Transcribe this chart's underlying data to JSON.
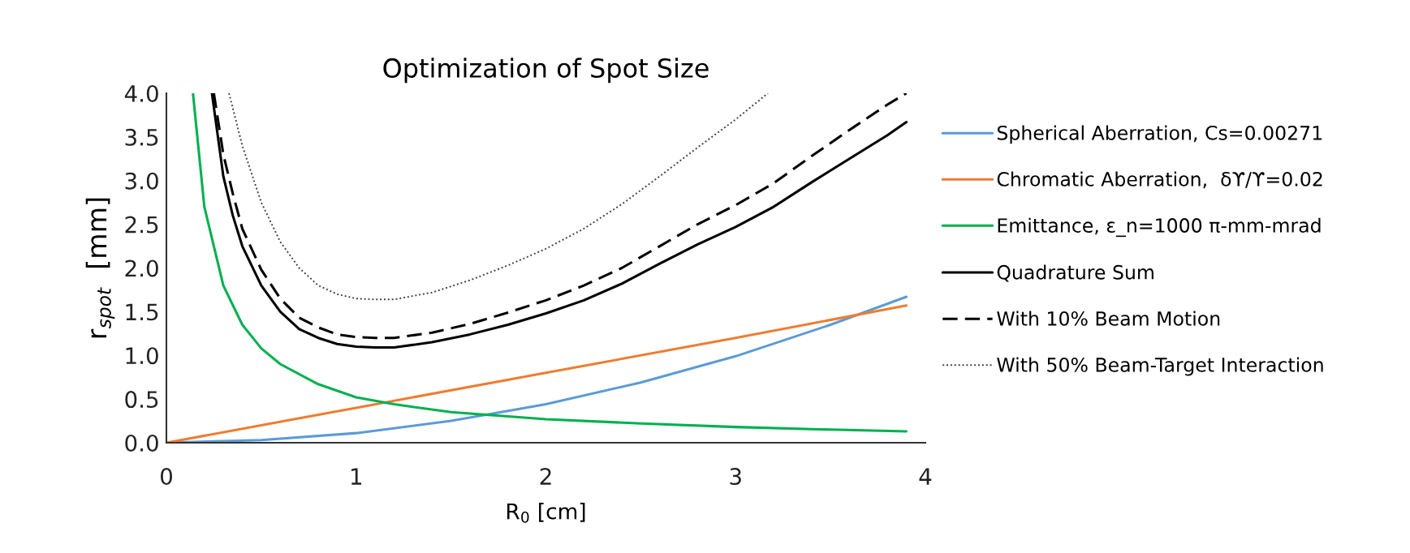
{
  "chart_data": {
    "type": "line",
    "title": "Optimization of Spot Size",
    "xlabel": "R$_{0}$ [cm]",
    "ylabel": "r$_{spot}$  [mm]",
    "xlim": [
      0,
      4
    ],
    "ylim": [
      0,
      4
    ],
    "xticks": [
      0,
      1,
      2,
      3,
      4
    ],
    "yticks": [
      {
        "value": 0,
        "label": "0.0"
      },
      {
        "value": 0.5,
        "label": "0.5"
      },
      {
        "value": 1,
        "label": "1.0"
      },
      {
        "value": 1.5,
        "label": "1.5"
      },
      {
        "value": 2,
        "label": "2.0"
      },
      {
        "value": 2.5,
        "label": "2.5"
      },
      {
        "value": 3,
        "label": "3.0"
      },
      {
        "value": 3.5,
        "label": "3.5"
      },
      {
        "value": 4,
        "label": "4.0"
      }
    ],
    "grid": false,
    "legend": "right",
    "marker": "none",
    "series": [
      {
        "name": "Spherical Aberration, Cs=0.00271",
        "color": "#5b9bd5",
        "line_style": "solid",
        "x": [
          0,
          0.5,
          1,
          1.5,
          2,
          2.5,
          3,
          3.5,
          3.9
        ],
        "values": [
          0,
          0.03,
          0.11,
          0.25,
          0.44,
          0.69,
          0.99,
          1.35,
          1.67
        ]
      },
      {
        "name": "Chromatic Aberration,  δϒ/ϒ=0.02",
        "color": "#ed7d31",
        "line_style": "solid",
        "x": [
          0,
          1,
          2,
          3,
          3.9
        ],
        "values": [
          0,
          0.4,
          0.8,
          1.2,
          1.57
        ]
      },
      {
        "name": "Emittance, ε_n=1000 π-mm-mrad",
        "color": "#00b050",
        "line_style": "solid",
        "x": [
          0.14,
          0.2,
          0.3,
          0.4,
          0.5,
          0.6,
          0.8,
          1.0,
          1.2,
          1.5,
          2.0,
          2.5,
          3.0,
          3.5,
          3.9
        ],
        "values": [
          4.0,
          2.7,
          1.8,
          1.35,
          1.08,
          0.9,
          0.67,
          0.52,
          0.44,
          0.35,
          0.27,
          0.22,
          0.18,
          0.15,
          0.13
        ]
      },
      {
        "name": "Quadrature Sum",
        "color": "#000000",
        "line_style": "solid",
        "x": [
          0.24,
          0.3,
          0.35,
          0.4,
          0.5,
          0.6,
          0.7,
          0.8,
          0.9,
          1.0,
          1.1,
          1.2,
          1.4,
          1.6,
          1.8,
          2.0,
          2.2,
          2.4,
          2.6,
          2.8,
          3.0,
          3.2,
          3.4,
          3.6,
          3.8,
          3.9
        ],
        "values": [
          4.0,
          3.05,
          2.6,
          2.25,
          1.8,
          1.5,
          1.3,
          1.2,
          1.13,
          1.1,
          1.09,
          1.09,
          1.15,
          1.24,
          1.35,
          1.48,
          1.63,
          1.82,
          2.05,
          2.27,
          2.47,
          2.7,
          2.98,
          3.25,
          3.52,
          3.67
        ]
      },
      {
        "name": "With 10% Beam Motion",
        "color": "#000000",
        "line_style": "dashed",
        "x": [
          0.25,
          0.3,
          0.35,
          0.4,
          0.5,
          0.6,
          0.7,
          0.8,
          0.9,
          1.0,
          1.1,
          1.2,
          1.4,
          1.6,
          1.8,
          2.0,
          2.2,
          2.4,
          2.6,
          2.8,
          3.0,
          3.2,
          3.4,
          3.6,
          3.8,
          3.9
        ],
        "values": [
          4.0,
          3.3,
          2.85,
          2.45,
          1.98,
          1.65,
          1.43,
          1.32,
          1.24,
          1.21,
          1.2,
          1.2,
          1.26,
          1.36,
          1.49,
          1.63,
          1.8,
          2.0,
          2.25,
          2.5,
          2.72,
          2.97,
          3.28,
          3.58,
          3.87,
          4.0
        ]
      },
      {
        "name": "With 50% Beam-Target Interaction",
        "color": "#404040",
        "line_style": "dotted",
        "x": [
          0.33,
          0.4,
          0.5,
          0.6,
          0.7,
          0.8,
          0.9,
          1.0,
          1.1,
          1.2,
          1.4,
          1.6,
          1.8,
          2.0,
          2.2,
          2.4,
          2.6,
          2.8,
          3.0,
          3.17
        ],
        "values": [
          4.0,
          3.4,
          2.75,
          2.3,
          2.0,
          1.8,
          1.7,
          1.65,
          1.64,
          1.64,
          1.72,
          1.86,
          2.03,
          2.22,
          2.45,
          2.73,
          3.05,
          3.38,
          3.7,
          4.0
        ]
      }
    ]
  }
}
